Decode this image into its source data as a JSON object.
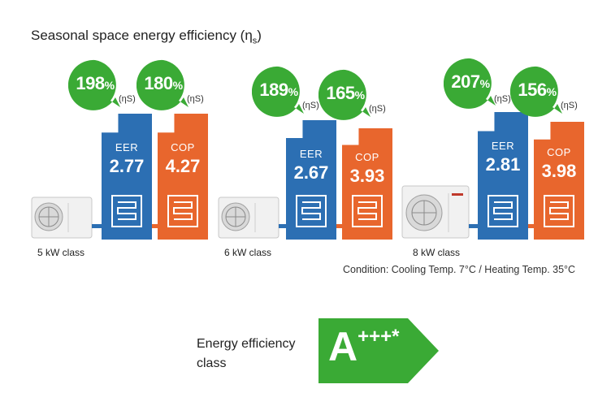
{
  "title_main": "Seasonal space energy efficiency (η",
  "title_sub": "s",
  "title_close": ")",
  "eta_symbol": "(ηS)",
  "units": [
    {
      "class_label": "5 kW class",
      "eer_label": "EER",
      "eer_value": "2.77",
      "cop_label": "COP",
      "cop_value": "4.27",
      "cool_pct": "198",
      "heat_pct": "180"
    },
    {
      "class_label": "6 kW class",
      "eer_label": "EER",
      "eer_value": "2.67",
      "cop_label": "COP",
      "cop_value": "3.93",
      "cool_pct": "189",
      "heat_pct": "165"
    },
    {
      "class_label": "8 kW class",
      "eer_label": "EER",
      "eer_value": "2.81",
      "cop_label": "COP",
      "cop_value": "3.98",
      "cool_pct": "207",
      "heat_pct": "156"
    }
  ],
  "percent_sign": "%",
  "condition": "Condition: Cooling Temp. 7°C / Heating Temp. 35°C",
  "energy_class": {
    "label_line1": "Energy efficiency",
    "label_line2": "class",
    "rating": "A",
    "plus": "+++",
    "asterisk": "*"
  },
  "colors": {
    "blue": "#2c6fb3",
    "orange": "#e8662d",
    "green": "#3aaa35"
  }
}
